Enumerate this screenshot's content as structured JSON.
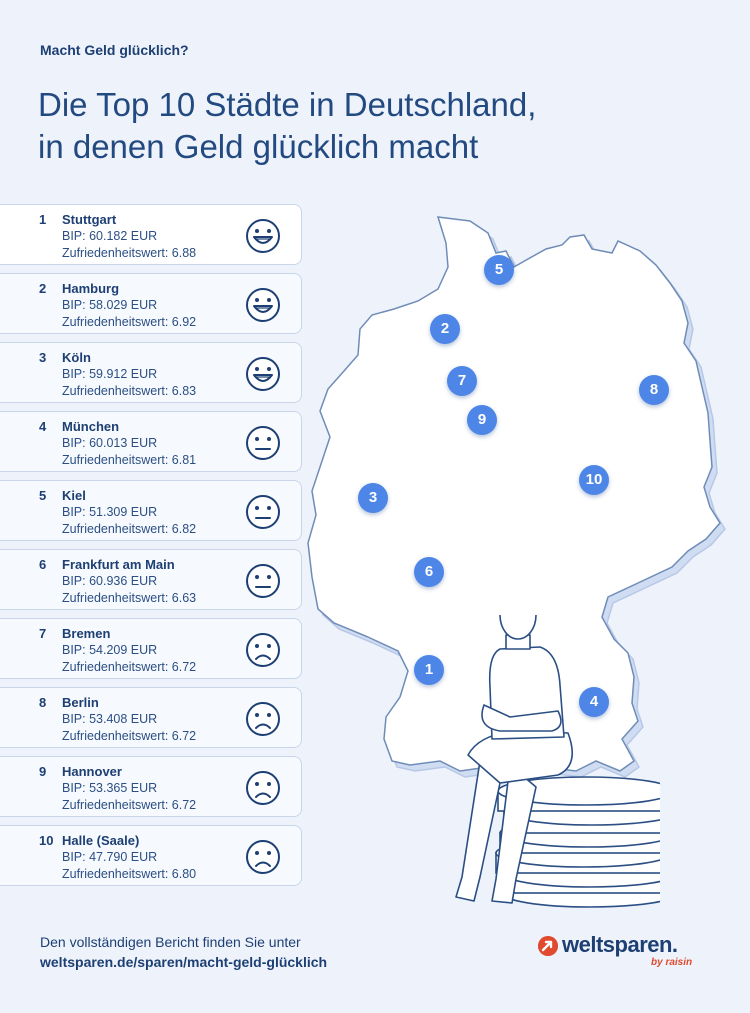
{
  "header": {
    "kicker": "Macht Geld glücklich?",
    "title_line1": "Die Top 10 Städte in Deutschland,",
    "title_line2": "in denen Geld glücklich macht"
  },
  "ranking": [
    {
      "rank": "1",
      "city": "Stuttgart",
      "bip": "BIP: 60.182 EUR",
      "score": "Zufriedenheitswert: 6.88",
      "face": "big-smile-icon"
    },
    {
      "rank": "2",
      "city": "Hamburg",
      "bip": "BIP: 58.029 EUR",
      "score": "Zufriedenheitswert: 6.92",
      "face": "big-smile-icon"
    },
    {
      "rank": "3",
      "city": "Köln",
      "bip": "BIP: 59.912 EUR",
      "score": "Zufriedenheitswert: 6.83",
      "face": "big-smile-icon"
    },
    {
      "rank": "4",
      "city": "München",
      "bip": "BIP: 60.013 EUR",
      "score": "Zufriedenheitswert: 6.81",
      "face": "neutral-face-icon"
    },
    {
      "rank": "5",
      "city": "Kiel",
      "bip": "BIP: 51.309 EUR",
      "score": "Zufriedenheitswert: 6.82",
      "face": "neutral-face-icon"
    },
    {
      "rank": "6",
      "city": "Frankfurt am Main",
      "bip": "BIP: 60.936 EUR",
      "score": "Zufriedenheitswert: 6.63",
      "face": "neutral-face-icon"
    },
    {
      "rank": "7",
      "city": "Bremen",
      "bip": "BIP: 54.209 EUR",
      "score": "Zufriedenheitswert: 6.72",
      "face": "sad-face-icon"
    },
    {
      "rank": "8",
      "city": "Berlin",
      "bip": "BIP: 53.408 EUR",
      "score": "Zufriedenheitswert: 6.72",
      "face": "sad-face-icon"
    },
    {
      "rank": "9",
      "city": "Hannover",
      "bip": "BIP: 53.365 EUR",
      "score": "Zufriedenheitswert: 6.72",
      "face": "sad-face-icon"
    },
    {
      "rank": "10",
      "city": "Halle (Saale)",
      "bip": "BIP: 47.790 EUR",
      "score": "Zufriedenheitswert: 6.80",
      "face": "sad-face-icon"
    }
  ],
  "map_pins": [
    "5",
    "2",
    "7",
    "9",
    "8",
    "10",
    "3",
    "6",
    "1",
    "4"
  ],
  "footer": {
    "line1": "Den vollständigen Bericht finden Sie unter",
    "line2": "weltsparen.de/sparen/macht-geld-glücklich"
  },
  "logo": {
    "brand": "weltsparen.",
    "byline": "by raisin"
  },
  "colors": {
    "background": "#eef3fb",
    "navy": "#1d3f73",
    "pin": "#4d86e6",
    "logo_red": "#e04a2e"
  }
}
